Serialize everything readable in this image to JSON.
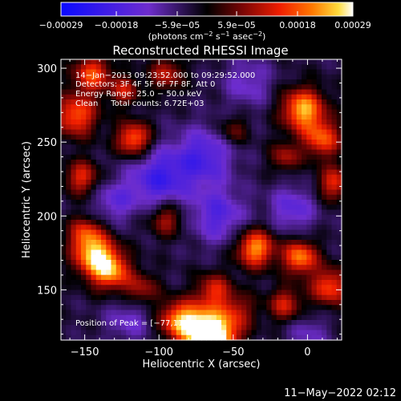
{
  "chart_data": {
    "type": "heatmap",
    "title": "Reconstructed RHESSI Image",
    "xlabel": "Heliocentric X (arcsec)",
    "ylabel": "Heliocentric Y (arcsec)",
    "xlim": [
      -166,
      23
    ],
    "ylim": [
      116,
      306
    ],
    "xticks": [
      -150,
      -100,
      -50,
      0
    ],
    "xtick_labels": [
      "−150",
      "−100",
      "−50",
      "0"
    ],
    "yticks": [
      150,
      200,
      250,
      300
    ],
    "ytick_labels": [
      "150",
      "200",
      "250",
      "300"
    ],
    "colorbar": {
      "range": [
        -0.00029,
        0.00029
      ],
      "ticks": [
        -0.00029,
        -0.00018,
        -5.9e-05,
        5.9e-05,
        0.00018,
        0.00029
      ],
      "tick_labels": [
        "−0.00029",
        "−0.00018",
        "−5.9e−05",
        "5.9e−05",
        "0.00018",
        "0.00029"
      ],
      "unit_prefix": "(photons cm",
      "unit_exp1": "−2",
      "unit_mid1": " s",
      "unit_exp2": "−1",
      "unit_mid2": " asec",
      "unit_exp3": "−2",
      "unit_suffix": ")"
    },
    "annotations": [
      "14−Jan−2013 09:23:52.000 to 09:29:52.000",
      "Detectors: 3F 4F 5F 6F 7F 8F, Att 0",
      "Energy Range: 25.0 − 50.0 keV",
      "Clean     Total counts: 6.72E+03"
    ],
    "peak_label": "Position of Peak = [−77,117]",
    "date_stamp": "11−May−2022 02:12",
    "blobs": [
      {
        "x": -72,
        "y": 124,
        "amp": 1.05,
        "s": 11
      },
      {
        "x": -60,
        "y": 116,
        "amp": 0.85,
        "s": 10
      },
      {
        "x": -88,
        "y": 130,
        "amp": 0.65,
        "s": 9
      },
      {
        "x": -48,
        "y": 135,
        "amp": 0.45,
        "s": 9
      },
      {
        "x": -143,
        "y": 173,
        "amp": 0.95,
        "s": 10
      },
      {
        "x": -132,
        "y": 162,
        "amp": 0.75,
        "s": 9
      },
      {
        "x": -150,
        "y": 188,
        "amp": 0.55,
        "s": 8
      },
      {
        "x": -152,
        "y": 226,
        "amp": 0.6,
        "s": 8
      },
      {
        "x": -117,
        "y": 252,
        "amp": 0.8,
        "s": 8
      },
      {
        "x": -156,
        "y": 268,
        "amp": 0.75,
        "s": 10
      },
      {
        "x": -145,
        "y": 296,
        "amp": 0.7,
        "s": 9
      },
      {
        "x": -123,
        "y": 285,
        "amp": 0.5,
        "s": 7
      },
      {
        "x": -95,
        "y": 296,
        "amp": 0.5,
        "s": 8
      },
      {
        "x": -3,
        "y": 272,
        "amp": 0.95,
        "s": 10
      },
      {
        "x": 10,
        "y": 252,
        "amp": 0.7,
        "s": 9
      },
      {
        "x": 18,
        "y": 222,
        "amp": 0.6,
        "s": 8
      },
      {
        "x": -15,
        "y": 240,
        "amp": 0.45,
        "s": 7
      },
      {
        "x": -35,
        "y": 178,
        "amp": 0.9,
        "s": 9
      },
      {
        "x": -5,
        "y": 172,
        "amp": 0.85,
        "s": 8
      },
      {
        "x": 15,
        "y": 152,
        "amp": 0.7,
        "s": 9
      },
      {
        "x": -15,
        "y": 140,
        "amp": 0.55,
        "s": 8
      },
      {
        "x": -95,
        "y": 198,
        "amp": 0.5,
        "s": 8
      },
      {
        "x": -63,
        "y": 150,
        "amp": 0.55,
        "s": 8
      },
      {
        "x": -112,
        "y": 150,
        "amp": 0.45,
        "s": 8
      },
      {
        "x": -50,
        "y": 258,
        "amp": 0.35,
        "s": 7
      },
      {
        "x": -100,
        "y": 225,
        "amp": -0.55,
        "s": 14
      },
      {
        "x": -70,
        "y": 240,
        "amp": -0.5,
        "s": 14
      },
      {
        "x": -60,
        "y": 200,
        "amp": -0.45,
        "s": 13
      },
      {
        "x": -10,
        "y": 205,
        "amp": -0.4,
        "s": 11
      },
      {
        "x": -130,
        "y": 210,
        "amp": -0.35,
        "s": 10
      },
      {
        "x": -40,
        "y": 290,
        "amp": -0.3,
        "s": 12
      },
      {
        "x": -120,
        "y": 130,
        "amp": -0.3,
        "s": 11
      },
      {
        "x": 0,
        "y": 120,
        "amp": -0.25,
        "s": 10
      }
    ]
  }
}
